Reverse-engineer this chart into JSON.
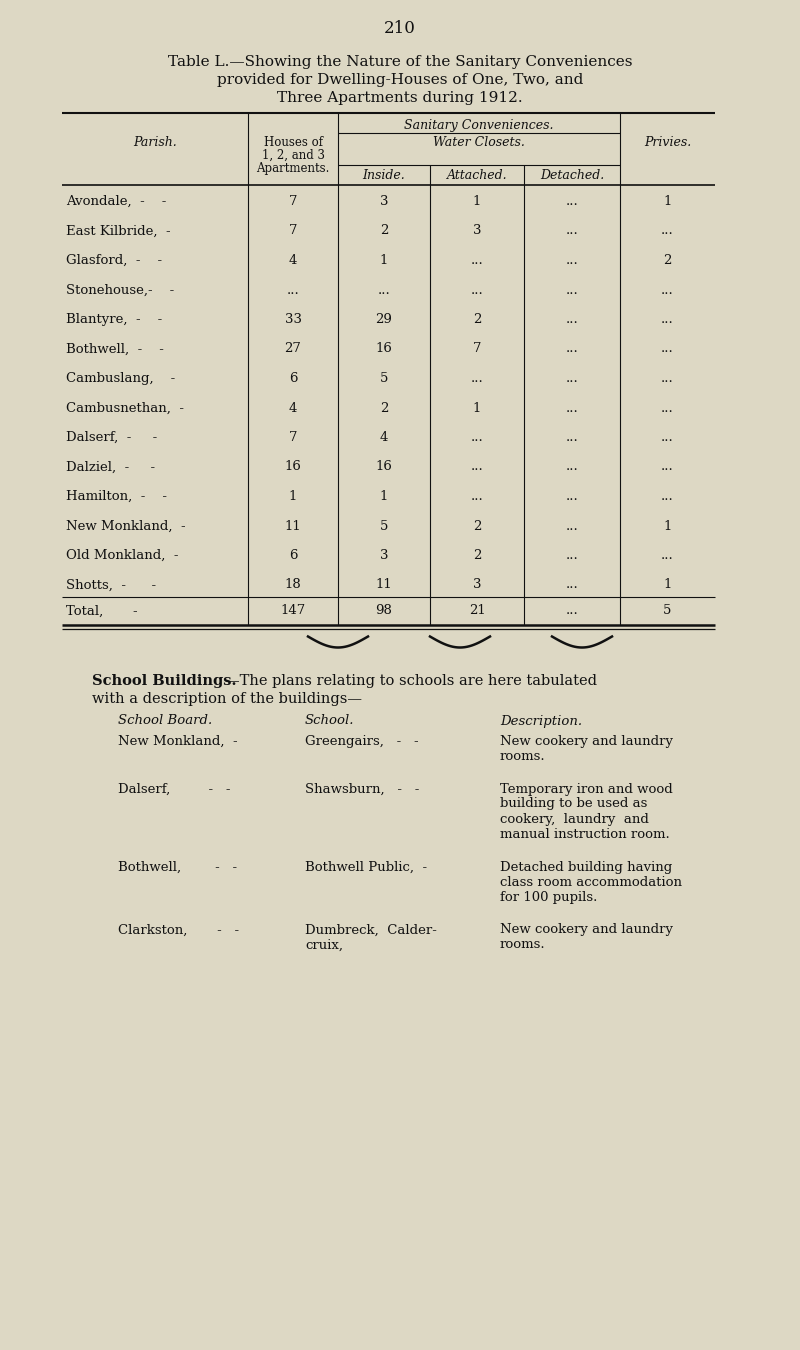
{
  "page_number": "210",
  "bg_color": "#ddd8c4",
  "title_line1": "Table L.—Showing the Nature of the Sanitary Conveniences",
  "title_line2": "provided for Dwelling-Houses of One, Two, and",
  "title_line3": "Three Apartments during 1912.",
  "col_headers": {
    "parish": "Parish.",
    "houses": "Houses of\n1, 2, and 3\nApartments.",
    "sanitary": "Sanitary Conveniences.",
    "water_closets": "Water Closets.",
    "inside": "Inside.",
    "attached": "Attached.",
    "detached": "Detached.",
    "privies": "Privies."
  },
  "rows": [
    {
      "parish": "Avondale,  -    -",
      "houses": "7",
      "inside": "3",
      "attached": "1",
      "detached": "...",
      "privies": "1"
    },
    {
      "parish": "East Kilbride,  -",
      "houses": "7",
      "inside": "2",
      "attached": "3",
      "detached": "...",
      "privies": "..."
    },
    {
      "parish": "Glasford,  -    -",
      "houses": "4",
      "inside": "1",
      "attached": "...",
      "detached": "...",
      "privies": "2"
    },
    {
      "parish": "Stonehouse,-    -",
      "houses": "...",
      "inside": "...",
      "attached": "...",
      "detached": "...",
      "privies": "..."
    },
    {
      "parish": "Blantyre,  -    -",
      "houses": "33",
      "inside": "29",
      "attached": "2",
      "detached": "...",
      "privies": "..."
    },
    {
      "parish": "Bothwell,  -    -",
      "houses": "27",
      "inside": "16",
      "attached": "7",
      "detached": "...",
      "privies": "..."
    },
    {
      "parish": "Cambuslang,    -",
      "houses": "6",
      "inside": "5",
      "attached": "...",
      "detached": "...",
      "privies": "..."
    },
    {
      "parish": "Cambusnethan,  -",
      "houses": "4",
      "inside": "2",
      "attached": "1",
      "detached": "...",
      "privies": "..."
    },
    {
      "parish": "Dalserf,  -     -",
      "houses": "7",
      "inside": "4",
      "attached": "...",
      "detached": "...",
      "privies": "..."
    },
    {
      "parish": "Dalziel,  -     -",
      "houses": "16",
      "inside": "16",
      "attached": "...",
      "detached": "...",
      "privies": "..."
    },
    {
      "parish": "Hamilton,  -    -",
      "houses": "1",
      "inside": "1",
      "attached": "...",
      "detached": "...",
      "privies": "..."
    },
    {
      "parish": "New Monkland,  -",
      "houses": "11",
      "inside": "5",
      "attached": "2",
      "detached": "...",
      "privies": "1"
    },
    {
      "parish": "Old Monkland,  -",
      "houses": "6",
      "inside": "3",
      "attached": "2",
      "detached": "...",
      "privies": "..."
    },
    {
      "parish": "Shotts,  -      -",
      "houses": "18",
      "inside": "11",
      "attached": "3",
      "detached": "...",
      "privies": "1"
    }
  ],
  "total_row": {
    "parish": "Total,       -",
    "houses": "147",
    "inside": "98",
    "attached": "21",
    "detached": "...",
    "privies": "5"
  },
  "school_buildings_bold": "School Buildings.",
  "school_col_headers": [
    "School Board.",
    "School.",
    "Description."
  ],
  "school_rows": [
    {
      "board": "New Monkland,  -",
      "school": "Greengairs,   -   -",
      "desc_lines": [
        "New cookery and laundry",
        "rooms."
      ]
    },
    {
      "board": "Dalserf,         -   -",
      "school": "Shawsburn,   -   -",
      "desc_lines": [
        "Temporary iron and wood",
        "building to be used as",
        "cookery,  laundry  and",
        "manual instruction room."
      ]
    },
    {
      "board": "Bothwell,        -   -",
      "school": "Bothwell Public,  -",
      "desc_lines": [
        "Detached building having",
        "class room accommodation",
        "for 100 pupils."
      ]
    },
    {
      "board": "Clarkston,       -   -",
      "school_lines": [
        "Dumbreck,  Calder-",
        "cruix,"
      ],
      "desc_lines": [
        "New cookery and laundry",
        "rooms."
      ]
    }
  ]
}
